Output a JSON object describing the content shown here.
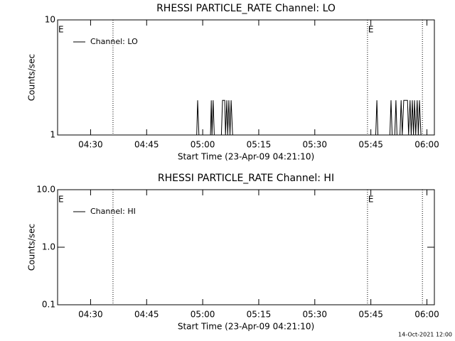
{
  "chart_data": [
    {
      "type": "line",
      "title": "RHESSI PARTICLE_RATE Channel: LO",
      "x_label": "Start Time (23-Apr-09 04:21:10)",
      "y_label": "Counts/sec",
      "xlim": [
        21.17,
        122
      ],
      "ylim": [
        1,
        10
      ],
      "yscale": "log",
      "legend": "upper left",
      "xticks": [
        {
          "value": 30,
          "label": "04:30"
        },
        {
          "value": 45,
          "label": "04:45"
        },
        {
          "value": 60,
          "label": "05:00"
        },
        {
          "value": 75,
          "label": "05:15"
        },
        {
          "value": 90,
          "label": "05:30"
        },
        {
          "value": 105,
          "label": "05:45"
        },
        {
          "value": 120,
          "label": "06:00"
        }
      ],
      "yticks": [
        1,
        10
      ],
      "vlines": [
        36.0,
        104.1,
        118.8
      ],
      "annotations": [
        {
          "text": "E",
          "x": 21.17
        },
        {
          "text": "E",
          "x": 104.1
        }
      ],
      "series": [
        {
          "name": "Channel: LO",
          "color": "#000000",
          "x": [
            58.4,
            58.65,
            59.0,
            62.1,
            62.3,
            62.5,
            62.8,
            63.1,
            65.0,
            65.3,
            65.9,
            66.1,
            66.45,
            66.7,
            67.0,
            67.3,
            67.6,
            68.0,
            106.3,
            106.6,
            106.9,
            110.1,
            110.4,
            110.7,
            111.4,
            111.7,
            112.0,
            112.8,
            113.1,
            113.4,
            113.8,
            114.8,
            115.1,
            115.5,
            115.8,
            116.1,
            116.4,
            116.7,
            117.0,
            117.4,
            117.7,
            118.0,
            118.4
          ],
          "values": [
            1,
            2,
            1,
            1,
            2,
            1,
            2,
            1,
            1,
            2,
            2,
            1,
            2,
            1,
            2,
            1,
            2,
            1,
            1,
            2,
            1,
            1,
            2,
            1,
            1,
            2,
            1,
            1,
            2,
            1,
            2,
            2,
            1,
            2,
            1,
            2,
            1,
            2,
            1,
            2,
            1,
            2,
            1
          ]
        }
      ]
    },
    {
      "type": "line",
      "title": "RHESSI PARTICLE_RATE Channel: HI",
      "x_label": "Start Time (23-Apr-09 04:21:10)",
      "y_label": "Counts/sec",
      "xlim": [
        21.17,
        122
      ],
      "ylim": [
        0.1,
        10
      ],
      "yscale": "log",
      "legend": "upper left",
      "xticks": [
        {
          "value": 30,
          "label": "04:30"
        },
        {
          "value": 45,
          "label": "04:45"
        },
        {
          "value": 60,
          "label": "05:00"
        },
        {
          "value": 75,
          "label": "05:15"
        },
        {
          "value": 90,
          "label": "05:30"
        },
        {
          "value": 105,
          "label": "05:45"
        },
        {
          "value": 120,
          "label": "06:00"
        }
      ],
      "yticks": [
        0.1,
        {
          "value": 1,
          "label": "1.0"
        },
        {
          "value": 10,
          "label": "10.0"
        }
      ],
      "vlines": [
        36.0,
        104.1,
        118.8
      ],
      "annotations": [
        {
          "text": "E",
          "x": 21.17
        },
        {
          "text": "E",
          "x": 104.1
        }
      ],
      "series": [
        {
          "name": "Channel: HI",
          "color": "#000000",
          "x": [],
          "values": []
        }
      ]
    }
  ],
  "footer": "14-Oct-2021 12:00"
}
